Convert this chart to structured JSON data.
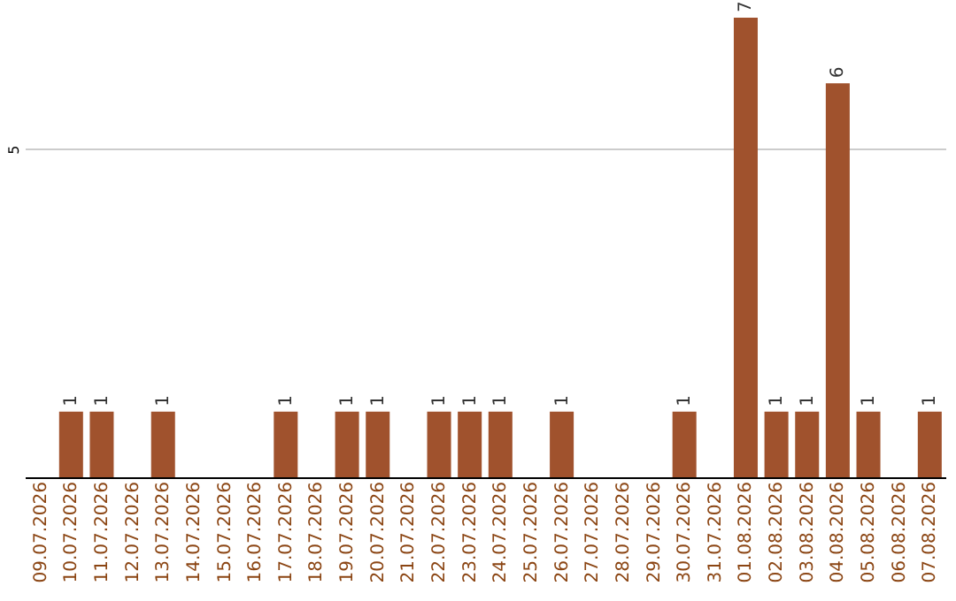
{
  "chart_data": {
    "type": "bar",
    "categories": [
      "09.07.2026",
      "10.07.2026",
      "11.07.2026",
      "12.07.2026",
      "13.07.2026",
      "14.07.2026",
      "15.07.2026",
      "16.07.2026",
      "17.07.2026",
      "18.07.2026",
      "19.07.2026",
      "20.07.2026",
      "21.07.2026",
      "22.07.2026",
      "23.07.2026",
      "24.07.2026",
      "25.07.2026",
      "26.07.2026",
      "27.07.2026",
      "28.07.2026",
      "29.07.2026",
      "30.07.2026",
      "31.07.2026",
      "01.08.2026",
      "02.08.2026",
      "03.08.2026",
      "04.08.2026",
      "05.08.2026",
      "06.08.2026",
      "07.08.2026"
    ],
    "values": [
      null,
      1,
      1,
      null,
      1,
      null,
      null,
      null,
      1,
      null,
      1,
      1,
      null,
      1,
      1,
      1,
      null,
      1,
      null,
      null,
      null,
      1,
      null,
      7,
      1,
      1,
      6,
      1,
      null,
      1
    ],
    "color": "#a0522d",
    "ylim": [
      0,
      7
    ],
    "yticks": [
      5
    ],
    "grid": true,
    "data_labels": true
  }
}
